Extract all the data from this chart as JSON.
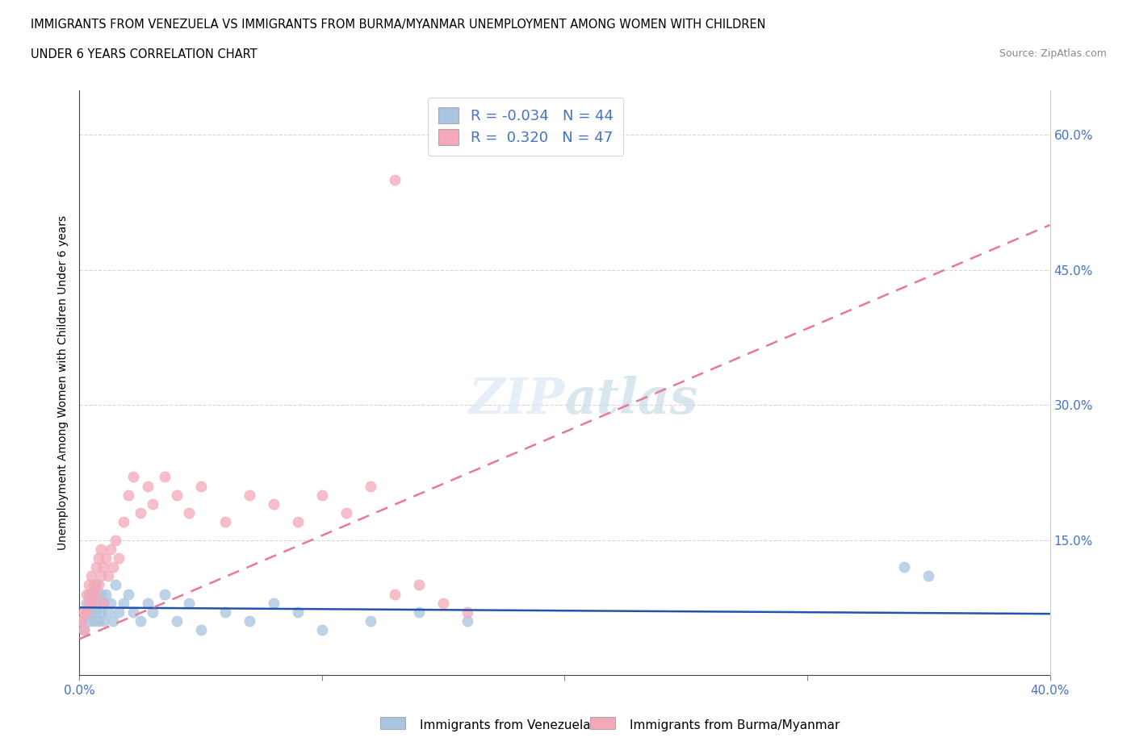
{
  "title_line1": "IMMIGRANTS FROM VENEZUELA VS IMMIGRANTS FROM BURMA/MYANMAR UNEMPLOYMENT AMONG WOMEN WITH CHILDREN",
  "title_line2": "UNDER 6 YEARS CORRELATION CHART",
  "source": "Source: ZipAtlas.com",
  "ylabel": "Unemployment Among Women with Children Under 6 years",
  "xlim": [
    0.0,
    0.4
  ],
  "ylim": [
    0.0,
    0.65
  ],
  "venezuela_color": "#a8c4e0",
  "venezuela_edge": "#7aafd4",
  "burma_color": "#f4a8b8",
  "burma_edge": "#e87898",
  "venezuela_R": -0.034,
  "venezuela_N": 44,
  "burma_R": 0.32,
  "burma_N": 47,
  "trend_venezuela_color": "#2255aa",
  "trend_burma_color": "#e87898",
  "legend_text_color": "#4472c4",
  "watermark": "ZIPatlas",
  "venezuela_x": [
    0.001,
    0.002,
    0.003,
    0.003,
    0.004,
    0.004,
    0.005,
    0.005,
    0.006,
    0.006,
    0.007,
    0.007,
    0.008,
    0.008,
    0.009,
    0.009,
    0.01,
    0.01,
    0.011,
    0.012,
    0.013,
    0.014,
    0.015,
    0.016,
    0.018,
    0.02,
    0.022,
    0.025,
    0.028,
    0.03,
    0.035,
    0.04,
    0.045,
    0.05,
    0.06,
    0.07,
    0.08,
    0.09,
    0.1,
    0.12,
    0.14,
    0.16,
    0.34,
    0.35
  ],
  "venezuela_y": [
    0.06,
    0.05,
    0.07,
    0.08,
    0.06,
    0.09,
    0.07,
    0.08,
    0.06,
    0.09,
    0.07,
    0.1,
    0.08,
    0.06,
    0.09,
    0.07,
    0.08,
    0.06,
    0.09,
    0.07,
    0.08,
    0.06,
    0.1,
    0.07,
    0.08,
    0.09,
    0.07,
    0.06,
    0.08,
    0.07,
    0.09,
    0.06,
    0.08,
    0.05,
    0.07,
    0.06,
    0.08,
    0.07,
    0.05,
    0.06,
    0.07,
    0.06,
    0.12,
    0.11
  ],
  "burma_x": [
    0.001,
    0.002,
    0.002,
    0.003,
    0.003,
    0.004,
    0.004,
    0.005,
    0.005,
    0.006,
    0.006,
    0.007,
    0.007,
    0.008,
    0.008,
    0.009,
    0.009,
    0.01,
    0.01,
    0.011,
    0.012,
    0.013,
    0.014,
    0.015,
    0.016,
    0.018,
    0.02,
    0.022,
    0.025,
    0.028,
    0.03,
    0.035,
    0.04,
    0.045,
    0.05,
    0.06,
    0.07,
    0.08,
    0.09,
    0.1,
    0.11,
    0.12,
    0.13,
    0.14,
    0.15,
    0.16,
    0.13
  ],
  "burma_y": [
    0.06,
    0.05,
    0.07,
    0.07,
    0.09,
    0.08,
    0.1,
    0.09,
    0.11,
    0.08,
    0.1,
    0.09,
    0.12,
    0.1,
    0.13,
    0.11,
    0.14,
    0.12,
    0.08,
    0.13,
    0.11,
    0.14,
    0.12,
    0.15,
    0.13,
    0.17,
    0.2,
    0.22,
    0.18,
    0.21,
    0.19,
    0.22,
    0.2,
    0.18,
    0.21,
    0.17,
    0.2,
    0.19,
    0.17,
    0.2,
    0.18,
    0.21,
    0.09,
    0.1,
    0.08,
    0.07,
    0.55
  ],
  "ven_trend_x0": 0.0,
  "ven_trend_y0": 0.075,
  "ven_trend_x1": 0.4,
  "ven_trend_y1": 0.068,
  "bur_trend_x0": 0.0,
  "bur_trend_y0": 0.04,
  "bur_trend_x1": 0.4,
  "bur_trend_y1": 0.5
}
